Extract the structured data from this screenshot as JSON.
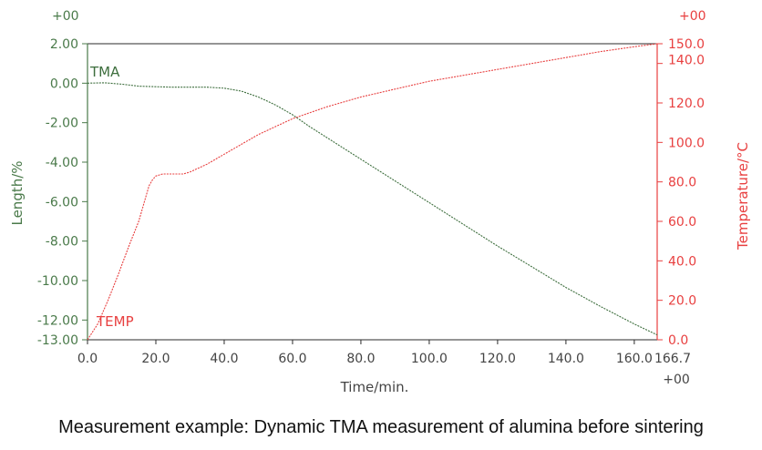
{
  "caption": "Measurement example: Dynamic TMA measurement of alumina before sintering",
  "chart_data": {
    "type": "line",
    "title": "",
    "xlabel": "Time/min.",
    "ylabel_left": "Length/%",
    "ylabel_right": "Temperature/°C",
    "xlim": [
      0,
      166.7
    ],
    "ylim_left": [
      -13.0,
      2.0
    ],
    "ylim_right": [
      0,
      150
    ],
    "x_ticks": [
      {
        "value": 0,
        "label": "0.0"
      },
      {
        "value": 20,
        "label": "20.0"
      },
      {
        "value": 40,
        "label": "40.0"
      },
      {
        "value": 60,
        "label": "60.0"
      },
      {
        "value": 80,
        "label": "80.0"
      },
      {
        "value": 100,
        "label": "100.0"
      },
      {
        "value": 120,
        "label": "120.0"
      },
      {
        "value": 140,
        "label": "140.0"
      },
      {
        "value": 160,
        "label": "160.0"
      }
    ],
    "x_end_label": "166.7",
    "x_end_sub": "+00",
    "left_ticks": [
      {
        "value": 2,
        "label": "2.00"
      },
      {
        "value": 0,
        "label": "0.00"
      },
      {
        "value": -2,
        "label": "-2.00"
      },
      {
        "value": -4,
        "label": "-4.00"
      },
      {
        "value": -6,
        "label": "-6.00"
      },
      {
        "value": -8,
        "label": "-8.00"
      },
      {
        "value": -10,
        "label": "-10.00"
      },
      {
        "value": -12,
        "label": "-12.00"
      },
      {
        "value": -13,
        "label": "-13.00"
      }
    ],
    "left_top_label": "+00",
    "right_ticks": [
      {
        "value": 150,
        "label": "150.0"
      },
      {
        "value": 140,
        "label": "140.0"
      },
      {
        "value": 120,
        "label": "120.0"
      },
      {
        "value": 100,
        "label": "100.0"
      },
      {
        "value": 80,
        "label": "80.0"
      },
      {
        "value": 60,
        "label": "60.0"
      },
      {
        "value": 40,
        "label": "40.0"
      },
      {
        "value": 20,
        "label": "20.0"
      },
      {
        "value": 0,
        "label": "0.0"
      }
    ],
    "right_top_label": "+00",
    "series": [
      {
        "name": "TMA",
        "axis": "left",
        "color": "#3d6e3d",
        "x": [
          0,
          5,
          10,
          15,
          20,
          25,
          30,
          35,
          40,
          45,
          50,
          55,
          60,
          65,
          70,
          80,
          90,
          100,
          110,
          120,
          130,
          140,
          150,
          160,
          166.7
        ],
        "y": [
          0.0,
          0.02,
          -0.05,
          -0.15,
          -0.18,
          -0.2,
          -0.2,
          -0.2,
          -0.25,
          -0.4,
          -0.7,
          -1.1,
          -1.6,
          -2.2,
          -2.75,
          -3.85,
          -4.95,
          -6.05,
          -7.15,
          -8.25,
          -9.3,
          -10.35,
          -11.3,
          -12.2,
          -12.75
        ]
      },
      {
        "name": "TEMP",
        "axis": "right",
        "color": "#e84040",
        "x": [
          0,
          3,
          6,
          9,
          12,
          15,
          17,
          18,
          19,
          20,
          22,
          25,
          28,
          30,
          35,
          40,
          45,
          50,
          55,
          60,
          65,
          70,
          80,
          90,
          100,
          110,
          120,
          130,
          140,
          150,
          160,
          166.7
        ],
        "y": [
          0,
          8,
          20,
          33,
          47,
          60,
          72,
          78,
          81,
          83,
          84,
          84,
          84,
          85,
          89,
          94,
          99,
          104,
          108,
          112,
          115,
          118,
          123,
          127,
          131,
          134,
          137,
          140,
          143,
          146,
          148.5,
          150
        ]
      }
    ]
  }
}
